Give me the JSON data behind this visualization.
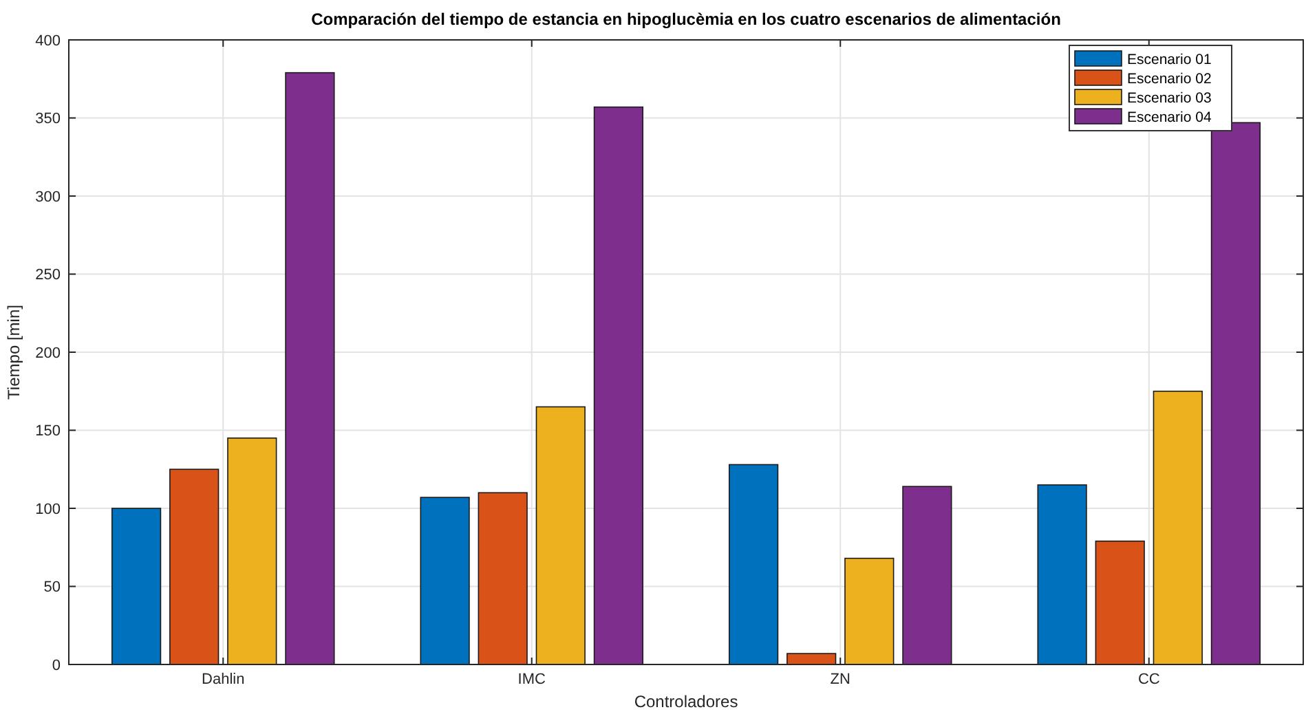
{
  "chart_data": {
    "type": "bar",
    "title": "Comparación del tiempo de estancia en hipoglucèmia en los cuatro escenarios de alimentación",
    "xlabel": "Controladores",
    "ylabel": "Tiempo [min]",
    "categories": [
      "Dahlin",
      "IMC",
      "ZN",
      "CC"
    ],
    "series": [
      {
        "name": "Escenario 01",
        "color": "#0072bd",
        "values": [
          100,
          107,
          128,
          115
        ]
      },
      {
        "name": "Escenario 02",
        "color": "#d95319",
        "values": [
          125,
          110,
          7,
          79
        ]
      },
      {
        "name": "Escenario 03",
        "color": "#edb120",
        "values": [
          145,
          165,
          68,
          175
        ]
      },
      {
        "name": "Escenario 04",
        "color": "#7e2f8e",
        "values": [
          379,
          357,
          114,
          347
        ]
      }
    ],
    "ylim": [
      0,
      400
    ],
    "yticks": [
      0,
      50,
      100,
      150,
      200,
      250,
      300,
      350,
      400
    ],
    "grid": true,
    "legend": "top right"
  }
}
